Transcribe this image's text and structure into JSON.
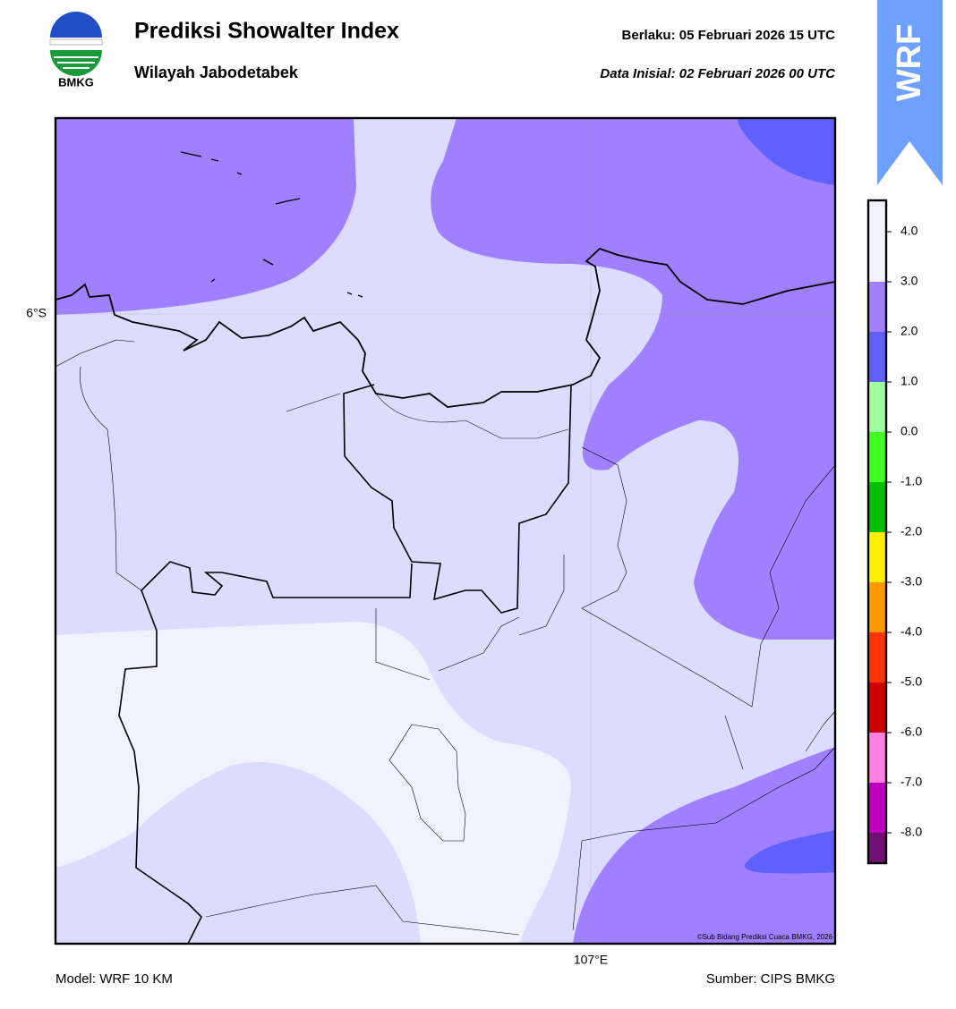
{
  "header": {
    "logo_text": "BMKG",
    "title": "Prediksi Showalter Index",
    "subtitle": "Wilayah Jabodetabek",
    "valid": "Berlaku:  05 Februari 2026 15 UTC",
    "init": "Data Inisial:  02 Februari 2026 00 UTC"
  },
  "badge": "WRF",
  "map": {
    "lat_label": "6°S",
    "lon_label": "107°E",
    "credit": "©Sub Bidang Prediksi Cuaca BMKG, 2026"
  },
  "colorbar": {
    "ticks": [
      {
        "value": 4,
        "label": "4.0"
      },
      {
        "value": 3,
        "label": "3.0"
      },
      {
        "value": 2,
        "label": "2.0"
      },
      {
        "value": 1,
        "label": "1.0"
      },
      {
        "value": 0,
        "label": "0.0"
      },
      {
        "value": -1,
        "label": "-1.0"
      },
      {
        "value": -2,
        "label": "-2.0"
      },
      {
        "value": -3,
        "label": "-3.0"
      },
      {
        "value": -4,
        "label": "-4.0"
      },
      {
        "value": -5,
        "label": "-5.0"
      },
      {
        "value": -6,
        "label": "-6.0"
      },
      {
        "value": -7,
        "label": "-7.0"
      },
      {
        "value": -8,
        "label": "-8.0"
      }
    ],
    "colors": [
      "#f2f2ff",
      "#a080ff",
      "#6060ff",
      "#a0ffa0",
      "#40ff20",
      "#00c000",
      "#ffee00",
      "#ff9900",
      "#ff3300",
      "#cc0000",
      "#ff80e0",
      "#c000c0",
      "#701070"
    ]
  },
  "footer": {
    "model": "Model: WRF 10 KM",
    "source": "Sumber: CIPS BMKG"
  }
}
